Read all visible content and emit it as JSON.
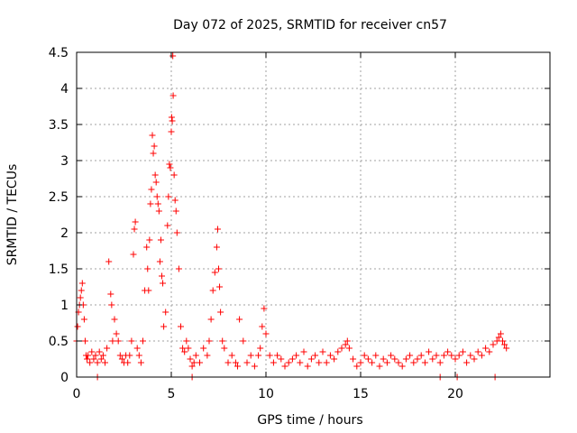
{
  "chart_data": {
    "type": "scatter",
    "title": "Day 072 of 2025, SRMTID for receiver cn57",
    "xlabel": "GPS time / hours",
    "ylabel": "SRMTID / TECUs",
    "xlim": [
      0,
      25
    ],
    "ylim": [
      0,
      4.5
    ],
    "xticks": [
      0,
      5,
      10,
      15,
      20
    ],
    "xtick_labels": [
      "0",
      "5",
      "10",
      "15",
      "20"
    ],
    "yticks": [
      0,
      0.5,
      1,
      1.5,
      2,
      2.5,
      3,
      3.5,
      4,
      4.5
    ],
    "ytick_labels": [
      "0",
      "0.5",
      "1",
      "1.5",
      "2",
      "2.5",
      "3",
      "3.5",
      "4",
      "4.5"
    ],
    "grid": true,
    "series": [
      {
        "name": "SRMTID",
        "color": "#ff0000",
        "marker": "plus",
        "x": [
          0.0,
          0.05,
          0.1,
          0.15,
          0.2,
          0.25,
          0.3,
          0.35,
          0.4,
          0.45,
          0.5,
          0.55,
          0.6,
          0.7,
          0.8,
          0.9,
          1.0,
          1.1,
          1.2,
          1.3,
          1.4,
          1.5,
          1.6,
          1.7,
          1.8,
          1.85,
          1.9,
          2.0,
          2.1,
          2.2,
          2.3,
          2.4,
          2.5,
          2.6,
          2.7,
          2.8,
          2.9,
          3.0,
          3.05,
          3.1,
          3.2,
          3.3,
          3.4,
          3.5,
          3.6,
          3.7,
          3.75,
          3.8,
          3.85,
          3.9,
          3.95,
          4.0,
          4.05,
          4.1,
          4.15,
          4.2,
          4.25,
          4.3,
          4.35,
          4.4,
          4.45,
          4.5,
          4.55,
          4.6,
          4.7,
          4.8,
          4.85,
          4.9,
          4.95,
          5.0,
          5.02,
          5.05,
          5.08,
          5.1,
          5.15,
          5.2,
          5.25,
          5.3,
          5.4,
          5.5,
          5.6,
          5.7,
          5.8,
          5.9,
          6.0,
          6.1,
          6.2,
          6.3,
          6.5,
          6.7,
          6.9,
          7.0,
          7.1,
          7.2,
          7.3,
          7.4,
          7.45,
          7.5,
          7.55,
          7.6,
          7.7,
          7.8,
          8.0,
          8.2,
          8.4,
          8.5,
          8.6,
          8.8,
          9.0,
          9.2,
          9.4,
          9.6,
          9.7,
          9.8,
          9.9,
          10.0,
          10.2,
          10.4,
          10.6,
          10.8,
          11.0,
          11.2,
          11.4,
          11.6,
          11.8,
          12.0,
          12.2,
          12.4,
          12.6,
          12.8,
          13.0,
          13.2,
          13.4,
          13.6,
          13.8,
          14.0,
          14.2,
          14.3,
          14.4,
          14.6,
          14.8,
          15.0,
          15.2,
          15.4,
          15.6,
          15.8,
          16.0,
          16.2,
          16.4,
          16.6,
          16.8,
          17.0,
          17.2,
          17.4,
          17.6,
          17.8,
          18.0,
          18.2,
          18.4,
          18.6,
          18.8,
          19.0,
          19.2,
          19.4,
          19.6,
          19.8,
          20.0,
          20.2,
          20.4,
          20.6,
          20.8,
          21.0,
          21.2,
          21.4,
          21.6,
          21.8,
          22.0,
          22.2,
          22.3,
          22.4,
          22.5,
          22.6,
          22.7,
          1.1,
          6.1,
          19.2,
          20.1,
          22.1
        ],
        "y": [
          0.5,
          0.7,
          0.9,
          1.0,
          1.1,
          1.2,
          1.3,
          1.0,
          0.8,
          0.5,
          0.3,
          0.25,
          0.3,
          0.2,
          0.35,
          0.25,
          0.3,
          0.2,
          0.35,
          0.25,
          0.3,
          0.2,
          0.4,
          1.6,
          1.15,
          1.0,
          0.5,
          0.8,
          0.6,
          0.5,
          0.3,
          0.25,
          0.2,
          0.3,
          0.2,
          0.3,
          0.5,
          1.7,
          2.05,
          2.15,
          0.4,
          0.3,
          0.2,
          0.5,
          1.2,
          1.8,
          1.5,
          1.2,
          1.9,
          2.4,
          2.6,
          3.35,
          3.1,
          3.2,
          2.8,
          2.7,
          2.5,
          2.4,
          2.3,
          1.6,
          1.9,
          1.4,
          1.3,
          0.7,
          0.9,
          2.1,
          2.5,
          2.95,
          2.9,
          3.4,
          3.6,
          3.55,
          4.45,
          3.9,
          2.8,
          2.45,
          2.3,
          2.0,
          1.5,
          0.7,
          0.4,
          0.35,
          0.5,
          0.4,
          0.25,
          0.15,
          0.2,
          0.3,
          0.2,
          0.4,
          0.3,
          0.5,
          0.8,
          1.2,
          1.45,
          1.8,
          2.05,
          1.5,
          1.25,
          0.9,
          0.5,
          0.4,
          0.2,
          0.3,
          0.2,
          0.15,
          0.8,
          0.5,
          0.2,
          0.3,
          0.15,
          0.3,
          0.4,
          0.7,
          0.95,
          0.6,
          0.3,
          0.2,
          0.3,
          0.25,
          0.15,
          0.2,
          0.25,
          0.3,
          0.2,
          0.35,
          0.15,
          0.25,
          0.3,
          0.2,
          0.35,
          0.2,
          0.3,
          0.25,
          0.35,
          0.4,
          0.45,
          0.5,
          0.4,
          0.25,
          0.15,
          0.2,
          0.3,
          0.25,
          0.2,
          0.3,
          0.15,
          0.25,
          0.2,
          0.3,
          0.25,
          0.2,
          0.15,
          0.25,
          0.3,
          0.2,
          0.25,
          0.3,
          0.2,
          0.35,
          0.25,
          0.3,
          0.2,
          0.3,
          0.35,
          0.3,
          0.25,
          0.3,
          0.35,
          0.2,
          0.3,
          0.25,
          0.35,
          0.3,
          0.4,
          0.35,
          0.45,
          0.5,
          0.55,
          0.6,
          0.5,
          0.45,
          0.4,
          0.0,
          0.0,
          0.0,
          0.0,
          0.0
        ]
      }
    ]
  }
}
